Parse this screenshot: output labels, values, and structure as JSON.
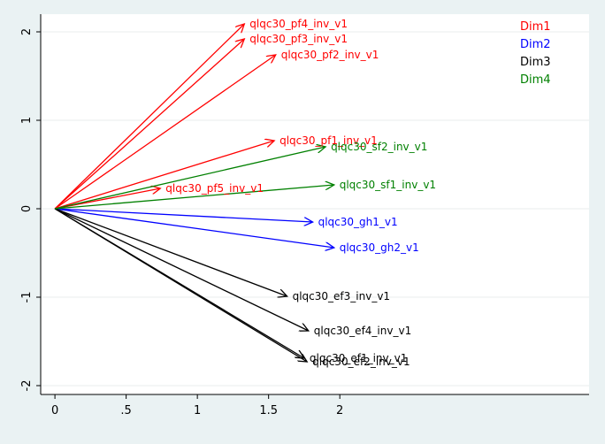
{
  "chart_data": {
    "type": "vector-biplot",
    "title": "",
    "xlabel": "",
    "ylabel": "",
    "xlim": [
      -0.1,
      3.75
    ],
    "ylim": [
      -2.1,
      2.2
    ],
    "x_ticks": [
      0,
      0.5,
      1,
      1.5,
      2
    ],
    "x_tick_labels": [
      "0",
      ".5",
      "1",
      "1.5",
      "2"
    ],
    "y_ticks": [
      -2,
      -1,
      0,
      1,
      2
    ],
    "y_tick_labels": [
      "-2",
      "-1",
      "0",
      "1",
      "2"
    ],
    "grid": "horizontal",
    "legend_position": "top-right",
    "series": [
      {
        "name": "Dim1",
        "color": "#ff0000",
        "vectors": [
          {
            "label": "qlqc30_pf4_inv_v1",
            "x": 1.33,
            "y": 2.09
          },
          {
            "label": "qlqc30_pf3_inv_v1",
            "x": 1.33,
            "y": 1.92
          },
          {
            "label": "qlqc30_pf2_inv_v1",
            "x": 1.55,
            "y": 1.74
          },
          {
            "label": "qlqc30_pf1_inv_v1",
            "x": 1.54,
            "y": 0.77
          },
          {
            "label": "qlqc30_pf5_inv_v1",
            "x": 0.74,
            "y": 0.23
          }
        ]
      },
      {
        "name": "Dim2",
        "color": "#0000ff",
        "vectors": [
          {
            "label": "qlqc30_gh1_v1",
            "x": 1.81,
            "y": -0.15
          },
          {
            "label": "qlqc30_gh2_v1",
            "x": 1.96,
            "y": -0.44
          }
        ]
      },
      {
        "name": "Dim3",
        "color": "#000000",
        "vectors": [
          {
            "label": "qlqc30_ef3_inv_v1",
            "x": 1.63,
            "y": -0.99
          },
          {
            "label": "qlqc30_ef4_inv_v1",
            "x": 1.78,
            "y": -1.38
          },
          {
            "label": "qlqc30_ef1_inv_v1",
            "x": 1.75,
            "y": -1.69
          },
          {
            "label": "qlqc30_ef2_inv_v1",
            "x": 1.77,
            "y": -1.73
          }
        ]
      },
      {
        "name": "Dim4",
        "color": "#008000",
        "vectors": [
          {
            "label": "qlqc30_sf2_inv_v1",
            "x": 1.9,
            "y": 0.7
          },
          {
            "label": "qlqc30_sf1_inv_v1",
            "x": 1.96,
            "y": 0.27
          }
        ]
      }
    ]
  }
}
